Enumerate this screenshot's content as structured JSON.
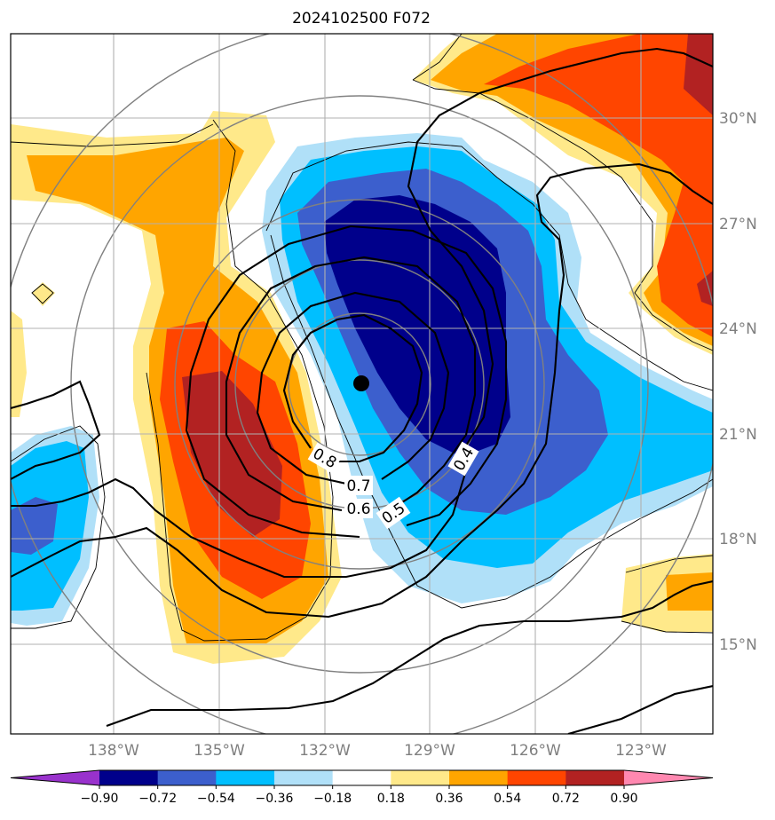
{
  "title": "2024102500 F072",
  "map": {
    "lat_labels": [
      "30°N",
      "27°N",
      "24°N",
      "21°N",
      "18°N",
      "15°N"
    ],
    "lon_labels": [
      "138°W",
      "135°W",
      "132°W",
      "129°W",
      "126°W",
      "123°W"
    ],
    "center_marker": {
      "lon": "130.9°W",
      "lat": "22.4°N"
    },
    "contour_labels": [
      "0.8",
      "0.7",
      "0.6",
      "0.5",
      "0.4"
    ],
    "gridline_color": "#b0b0b0",
    "ring_color": "#808080"
  },
  "colorbar": {
    "ticks": [
      "−0.90",
      "−0.72",
      "−0.54",
      "−0.36",
      "−0.18",
      "0.18",
      "0.36",
      "0.54",
      "0.72",
      "0.90"
    ],
    "colors": [
      "#9932cc",
      "#00008b",
      "#3c5fcd",
      "#00bfff",
      "#b0e0f8",
      "#ffffff",
      "#ffe98a",
      "#ffa500",
      "#ff4500",
      "#b22222",
      "#ff88b0"
    ]
  },
  "fill_colors": {
    "neg_90": "#00008b",
    "neg_72": "#3c5fcd",
    "neg_54": "#00bfff",
    "neg_36": "#b0e0f8",
    "pos_36": "#ffe98a",
    "pos_54": "#ffa500",
    "pos_72": "#ff4500",
    "pos_90": "#b22222"
  }
}
